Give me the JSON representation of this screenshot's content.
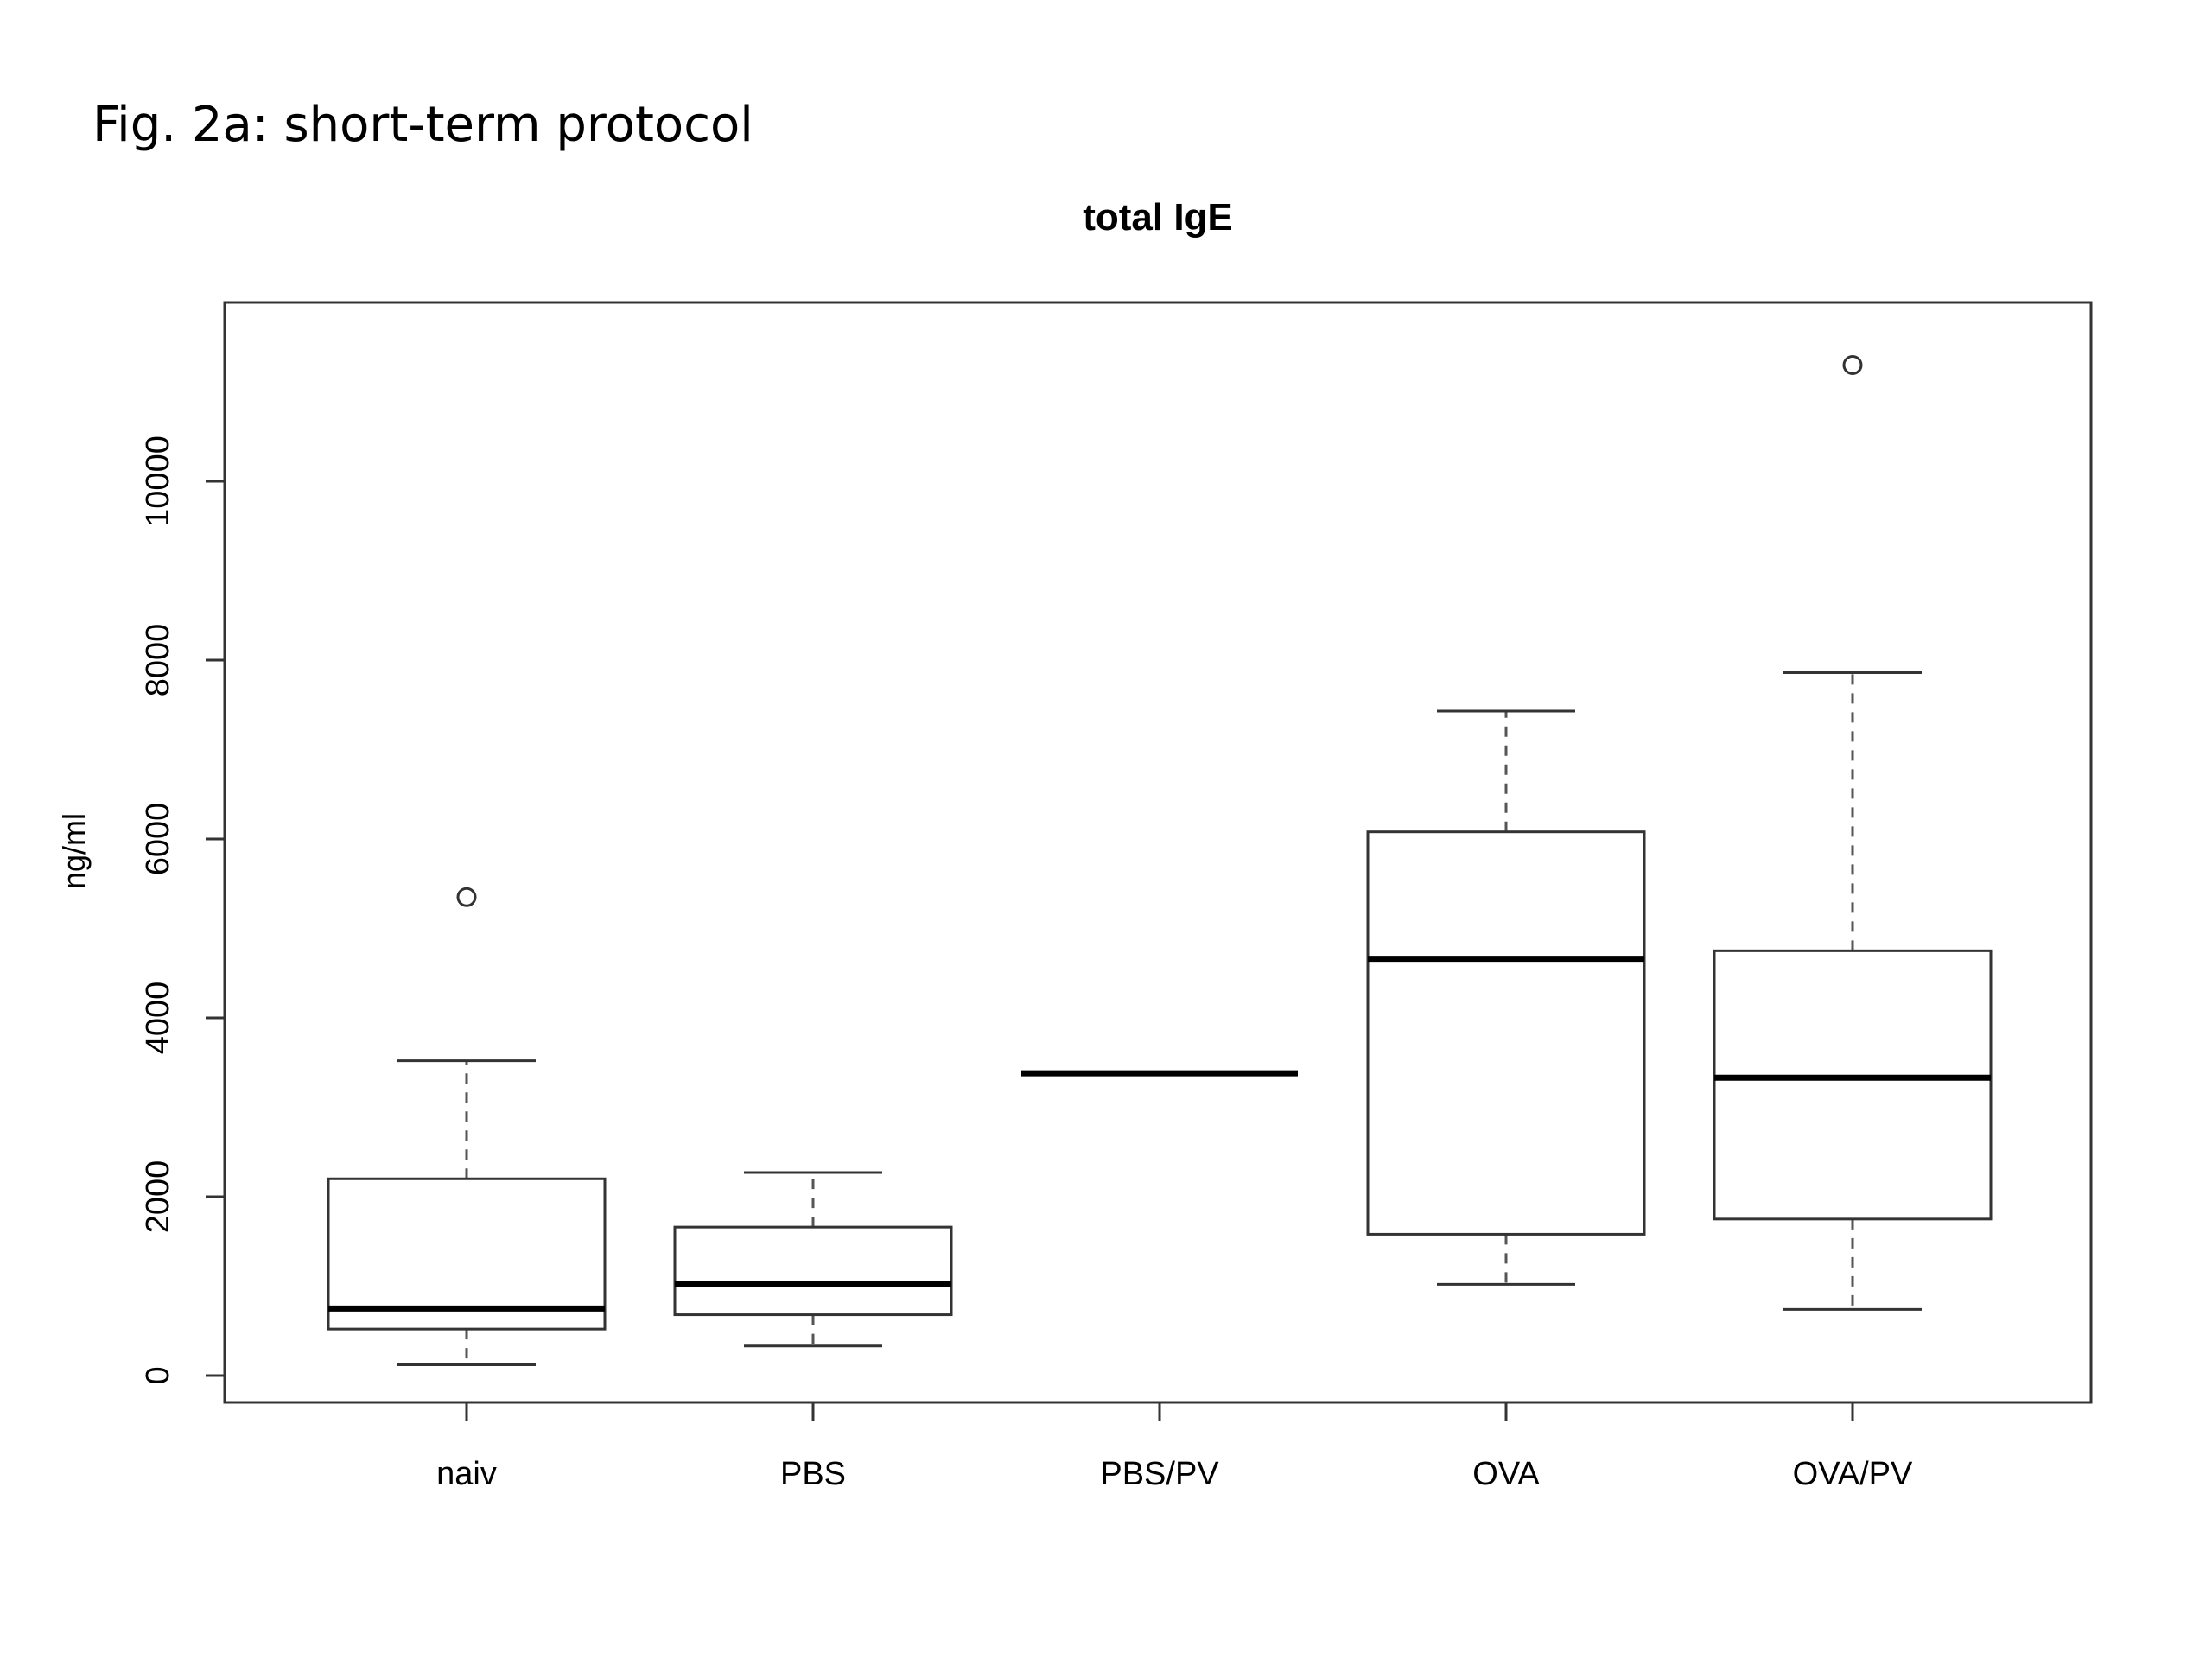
{
  "caption": "Fig. 2a: short-term protocol",
  "chart_data": {
    "type": "boxplot",
    "title": "total IgE",
    "xlabel": "",
    "ylabel": "ng/ml",
    "ylim": [
      -300,
      12000
    ],
    "yticks": [
      0,
      2000,
      4000,
      6000,
      8000,
      10000
    ],
    "tick_labels": [
      "0",
      "2000",
      "4000",
      "6000",
      "8000",
      "10000"
    ],
    "grid": false,
    "categories": [
      "naiv",
      "PBS",
      "PBS/PV",
      "OVA",
      "OVA/PV"
    ],
    "boxes": [
      {
        "category": "naiv",
        "whisker_low": 120,
        "q1": 520,
        "median": 750,
        "q3": 2200,
        "whisker_high": 3520,
        "outliers": [
          5350
        ]
      },
      {
        "category": "PBS",
        "whisker_low": 330,
        "q1": 680,
        "median": 1020,
        "q3": 1660,
        "whisker_high": 2270,
        "outliers": []
      },
      {
        "category": "PBS/PV",
        "whisker_low": 3380,
        "q1": 3380,
        "median": 3380,
        "q3": 3380,
        "whisker_high": 3380,
        "outliers": []
      },
      {
        "category": "OVA",
        "whisker_low": 1020,
        "q1": 1580,
        "median": 4660,
        "q3": 6080,
        "whisker_high": 7430,
        "outliers": []
      },
      {
        "category": "OVA/PV",
        "whisker_low": 740,
        "q1": 1750,
        "median": 3330,
        "q3": 4750,
        "whisker_high": 7860,
        "outliers": [
          11300
        ]
      }
    ]
  }
}
